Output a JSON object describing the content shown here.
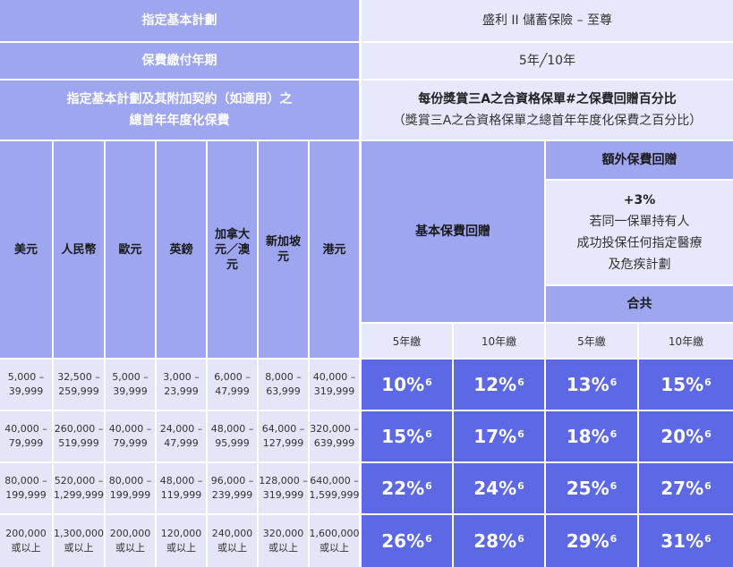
{
  "plan_label": "指定基本計劃",
  "plan_value": "盛利 II 儲蓄保險 – 至尊",
  "payment_label": "保費繳付年期",
  "payment_value": "5年╱10年",
  "premium_label_line1": "指定基本計劃及其附加契約（如適用）之",
  "premium_label_line2": "總首年年度化保費",
  "rebate_title": "每份獎賞三A之合資格保單#之保費回贈百分比",
  "rebate_subtitle": "（獎賞三A之合資格保單之總首年年度化保費之百分比）",
  "currencies": [
    "美元",
    "人民幣",
    "歐元",
    "英鎊",
    "加拿大元／澳元",
    "新加坡元",
    "港元"
  ],
  "basic_rebate_label": "基本保費回贈",
  "extra_rebate_label": "額外保費回贈",
  "extra_rebate_desc": [
    "+3%",
    "若同一保單持有人",
    "成功投保任何指定醫療",
    "及危疾計劃"
  ],
  "total_label": "合共",
  "term_labels": [
    "5年繳",
    "10年繳",
    "5年繳",
    "10年繳"
  ],
  "rows": [
    {
      "amounts": [
        [
          "5,000 –",
          "39,999"
        ],
        [
          "32,500 –",
          "259,999"
        ],
        [
          "5,000 –",
          "39,999"
        ],
        [
          "3,000 –",
          "23,999"
        ],
        [
          "6,000 –",
          "47,999"
        ],
        [
          "8,000 –",
          "63,999"
        ],
        [
          "40,000 –",
          "319,999"
        ]
      ],
      "rates": [
        "10%",
        "12%",
        "13%",
        "15%"
      ]
    },
    {
      "amounts": [
        [
          "40,000 –",
          "79,999"
        ],
        [
          "260,000 –",
          "519,999"
        ],
        [
          "40,000 –",
          "79,999"
        ],
        [
          "24,000 –",
          "47,999"
        ],
        [
          "48,000 –",
          "95,999"
        ],
        [
          "64,000 –",
          "127,999"
        ],
        [
          "320,000 –",
          "639,999"
        ]
      ],
      "rates": [
        "15%",
        "17%",
        "18%",
        "20%"
      ]
    },
    {
      "amounts": [
        [
          "80,000 –",
          "199,999"
        ],
        [
          "520,000 –",
          "1,299,999"
        ],
        [
          "80,000 –",
          "199,999"
        ],
        [
          "48,000 –",
          "119,999"
        ],
        [
          "96,000 –",
          "239,999"
        ],
        [
          "128,000 –",
          "319,999"
        ],
        [
          "640,000 –",
          "1,599,999"
        ]
      ],
      "rates": [
        "22%",
        "24%",
        "25%",
        "27%"
      ]
    },
    {
      "amounts": [
        [
          "200,000",
          "或以上"
        ],
        [
          "1,300,000",
          "或以上"
        ],
        [
          "200,000",
          "或以上"
        ],
        [
          "120,000",
          "或以上"
        ],
        [
          "240,000",
          "或以上"
        ],
        [
          "320,000",
          "或以上"
        ],
        [
          "1,600,000",
          "或以上"
        ]
      ],
      "rates": [
        "26%",
        "28%",
        "29%",
        "31%"
      ]
    }
  ],
  "footnote_mark": "6"
}
